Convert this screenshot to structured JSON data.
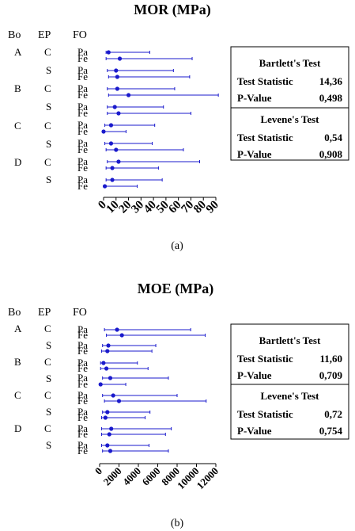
{
  "chart_data": [
    {
      "type": "interval",
      "title": "MOR (MPa)",
      "caption": "(a)",
      "headers": [
        "Bo",
        "EP",
        "FO"
      ],
      "group_labels": {
        "Bo": [
          "A",
          "B",
          "C",
          "D"
        ],
        "EP": [
          "C",
          "S",
          "C",
          "S",
          "C",
          "S",
          "C",
          "S"
        ]
      },
      "rows": [
        {
          "Bo": "A",
          "EP": "C",
          "FO": "Pa",
          "low": 2,
          "center": 4,
          "high": 37
        },
        {
          "Bo": "A",
          "EP": "C",
          "FO": "Fe",
          "low": 2,
          "center": 13,
          "high": 71
        },
        {
          "Bo": "A",
          "EP": "S",
          "FO": "Pa",
          "low": 3,
          "center": 10,
          "high": 56
        },
        {
          "Bo": "A",
          "EP": "S",
          "FO": "Fe",
          "low": 4,
          "center": 11,
          "high": 69
        },
        {
          "Bo": "B",
          "EP": "C",
          "FO": "Pa",
          "low": 3,
          "center": 11,
          "high": 57
        },
        {
          "Bo": "B",
          "EP": "C",
          "FO": "Fe",
          "low": 4,
          "center": 20,
          "high": 92
        },
        {
          "Bo": "B",
          "EP": "S",
          "FO": "Pa",
          "low": 3,
          "center": 9,
          "high": 48
        },
        {
          "Bo": "B",
          "EP": "S",
          "FO": "Fe",
          "low": 3,
          "center": 12,
          "high": 70
        },
        {
          "Bo": "C",
          "EP": "C",
          "FO": "Pa",
          "low": 1,
          "center": 6,
          "high": 41
        },
        {
          "Bo": "C",
          "EP": "C",
          "FO": "Fe",
          "low": 0,
          "center": 0,
          "high": 18
        },
        {
          "Bo": "C",
          "EP": "S",
          "FO": "Pa",
          "low": 1,
          "center": 6,
          "high": 39
        },
        {
          "Bo": "C",
          "EP": "S",
          "FO": "Fe",
          "low": 2,
          "center": 10,
          "high": 64
        },
        {
          "Bo": "D",
          "EP": "C",
          "FO": "Pa",
          "low": 3,
          "center": 12,
          "high": 77
        },
        {
          "Bo": "D",
          "EP": "C",
          "FO": "Fe",
          "low": 2,
          "center": 7,
          "high": 44
        },
        {
          "Bo": "D",
          "EP": "S",
          "FO": "Pa",
          "low": 2,
          "center": 7,
          "high": 47
        },
        {
          "Bo": "D",
          "EP": "S",
          "FO": "Fe",
          "low": 1,
          "center": 1,
          "high": 27
        }
      ],
      "xticks": [
        0,
        10,
        20,
        30,
        40,
        50,
        60,
        70,
        80,
        90
      ],
      "xtick_labels": [
        "0",
        "10",
        "20",
        "30",
        "40",
        "50",
        "60",
        "70",
        "80",
        "90"
      ],
      "xlim": [
        0,
        90
      ],
      "tests": {
        "bartlett": {
          "title": "Bartlett's Test",
          "stat_label": "Test Statistic",
          "stat": "14,36",
          "p_label": "P-Value",
          "p": "0,498"
        },
        "levene": {
          "title": "Levene's Test",
          "stat_label": "Test Statistic",
          "stat": "0,54",
          "p_label": "P-Value",
          "p": "0,908"
        }
      }
    },
    {
      "type": "interval",
      "title": "MOE (MPa)",
      "caption": "(b)",
      "headers": [
        "Bo",
        "EP",
        "FO"
      ],
      "group_labels": {
        "Bo": [
          "A",
          "B",
          "C",
          "D"
        ],
        "EP": [
          "C",
          "S",
          "C",
          "S",
          "C",
          "S",
          "C",
          "S"
        ]
      },
      "rows": [
        {
          "Bo": "A",
          "EP": "C",
          "FO": "Pa",
          "low": 500,
          "center": 1800,
          "high": 9400
        },
        {
          "Bo": "A",
          "EP": "C",
          "FO": "Fe",
          "low": 700,
          "center": 2300,
          "high": 10900
        },
        {
          "Bo": "A",
          "EP": "S",
          "FO": "Pa",
          "low": 300,
          "center": 900,
          "high": 5800
        },
        {
          "Bo": "A",
          "EP": "S",
          "FO": "Fe",
          "low": 200,
          "center": 800,
          "high": 5400
        },
        {
          "Bo": "B",
          "EP": "C",
          "FO": "Pa",
          "low": 100,
          "center": 400,
          "high": 3900
        },
        {
          "Bo": "B",
          "EP": "C",
          "FO": "Fe",
          "low": 100,
          "center": 700,
          "high": 5000
        },
        {
          "Bo": "B",
          "EP": "S",
          "FO": "Pa",
          "low": 300,
          "center": 1100,
          "high": 7100
        },
        {
          "Bo": "B",
          "EP": "S",
          "FO": "Fe",
          "low": 0,
          "center": 100,
          "high": 2700
        },
        {
          "Bo": "C",
          "EP": "C",
          "FO": "Pa",
          "low": 300,
          "center": 1400,
          "high": 8000
        },
        {
          "Bo": "C",
          "EP": "C",
          "FO": "Fe",
          "low": 500,
          "center": 2000,
          "high": 11000
        },
        {
          "Bo": "C",
          "EP": "S",
          "FO": "Pa",
          "low": 300,
          "center": 800,
          "high": 5200
        },
        {
          "Bo": "C",
          "EP": "S",
          "FO": "Fe",
          "low": 200,
          "center": 600,
          "high": 4700
        },
        {
          "Bo": "D",
          "EP": "C",
          "FO": "Pa",
          "low": 200,
          "center": 1200,
          "high": 7400
        },
        {
          "Bo": "D",
          "EP": "C",
          "FO": "Fe",
          "low": 200,
          "center": 1000,
          "high": 6800
        },
        {
          "Bo": "D",
          "EP": "S",
          "FO": "Pa",
          "low": 200,
          "center": 800,
          "high": 5100
        },
        {
          "Bo": "D",
          "EP": "S",
          "FO": "Fe",
          "low": 300,
          "center": 1100,
          "high": 7100
        }
      ],
      "xticks": [
        0,
        2000,
        4000,
        6000,
        8000,
        10000,
        12000
      ],
      "xtick_labels": [
        "0",
        "2000",
        "4000",
        "6000",
        "8000",
        "10000",
        "12000"
      ],
      "xlim": [
        0,
        12000
      ],
      "tests": {
        "bartlett": {
          "title": "Bartlett's Test",
          "stat_label": "Test Statistic",
          "stat": "11,60",
          "p_label": "P-Value",
          "p": "0,709"
        },
        "levene": {
          "title": "Levene's Test",
          "stat_label": "Test Statistic",
          "stat": "0,72",
          "p_label": "P-Value",
          "p": "0,754"
        }
      }
    }
  ],
  "colors": {
    "interval": "#1a1acc",
    "marker": "#1a1acc",
    "axis": "#000000"
  }
}
